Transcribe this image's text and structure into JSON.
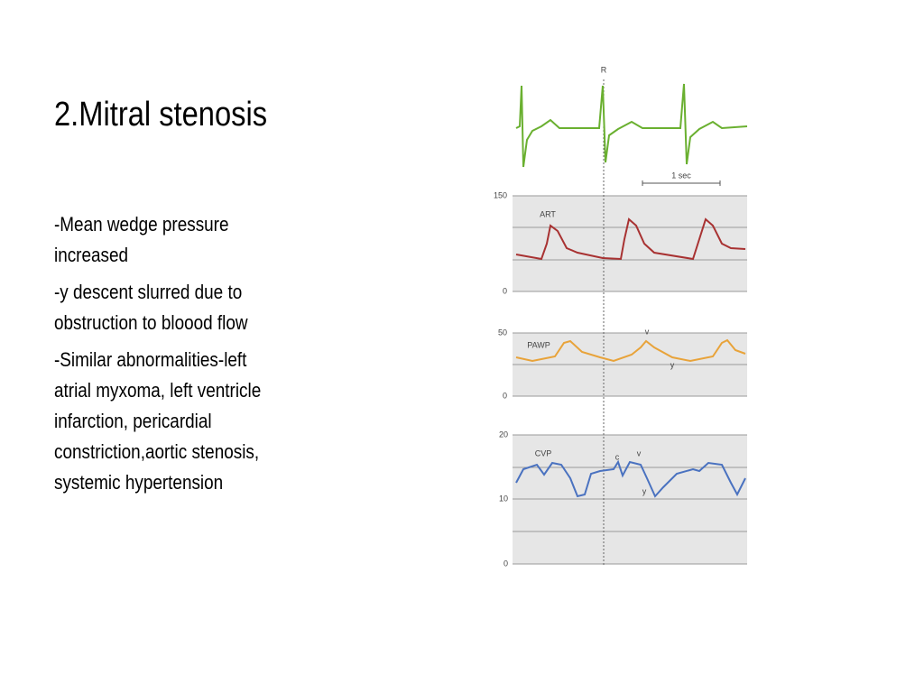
{
  "title": "2.Mitral stenosis",
  "bullets": [
    [
      "-Mean wedge pressure",
      "increased"
    ],
    [
      "-y descent slurred due to",
      "obstruction to bloood flow"
    ],
    [
      "-Similar abnormalities-left",
      "atrial myxoma, left ventricle",
      "infarction, pericardial",
      "constriction,aortic stenosis,",
      "systemic hypertension"
    ]
  ],
  "figure": {
    "ecg_label": "R",
    "scale_label": "1 sec",
    "panels": [
      {
        "name": "ART",
        "scale": [
          "150",
          "0"
        ]
      },
      {
        "name": "PAWP",
        "scale": [
          "50",
          "0"
        ],
        "annotations": [
          "v",
          "y"
        ]
      },
      {
        "name": "CVP",
        "scale": [
          "20",
          "10",
          "0"
        ],
        "annotations": [
          "c",
          "v",
          "y"
        ]
      }
    ]
  }
}
